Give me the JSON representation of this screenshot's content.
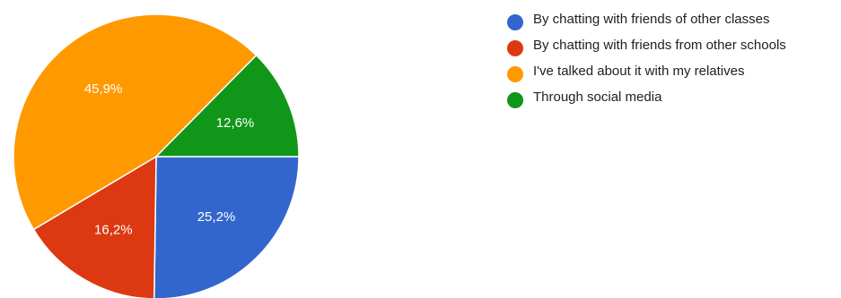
{
  "chart_data": {
    "type": "pie",
    "categories": [
      "By chatting with friends of other classes",
      "By chatting with friends from other schools",
      "I've talked about it with my relatives",
      "Through social media"
    ],
    "values": [
      25.2,
      16.2,
      45.9,
      12.6
    ],
    "value_labels": [
      "25,2%",
      "16,2%",
      "45,9%",
      "12,6%"
    ],
    "colors": [
      "#3366cc",
      "#dc3912",
      "#ff9900",
      "#109618"
    ],
    "start_angle_deg": 90,
    "direction": "clockwise",
    "legend_position": "right"
  }
}
